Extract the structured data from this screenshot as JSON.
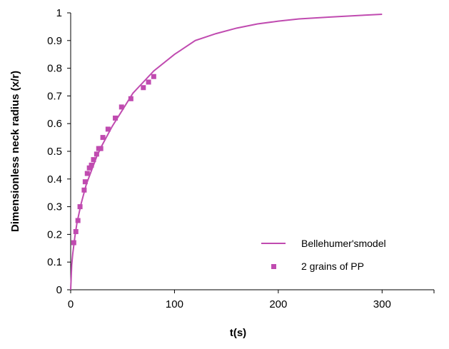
{
  "chart_data": {
    "type": "scatter",
    "xlabel": "t(s)",
    "ylabel": "Dimensionless neck radius (x/r)",
    "xlim": [
      0,
      350
    ],
    "ylim": [
      0,
      1
    ],
    "x_ticks": [
      0,
      100,
      200,
      300
    ],
    "y_ticks": [
      0,
      0.1,
      0.2,
      0.3,
      0.4,
      0.5,
      0.6,
      0.7,
      0.8,
      0.9,
      1
    ],
    "x_tick_labels": [
      "0",
      "100",
      "200",
      "300"
    ],
    "y_tick_labels": [
      "0",
      "0.1",
      "0.2",
      "0.3",
      "0.4",
      "0.5",
      "0.6",
      "0.7",
      "0.8",
      "0.9",
      "1"
    ],
    "grid": false,
    "legend_position": "bottom-right",
    "series": [
      {
        "name": "Bellehumer'smodel",
        "kind": "line",
        "color": "#c04bb0",
        "x": [
          0,
          1,
          2,
          4,
          6,
          10,
          15,
          20,
          25,
          30,
          40,
          50,
          60,
          70,
          80,
          100,
          120,
          140,
          160,
          180,
          200,
          220,
          250,
          280,
          300
        ],
        "y": [
          0,
          0.09,
          0.13,
          0.19,
          0.24,
          0.31,
          0.38,
          0.43,
          0.48,
          0.52,
          0.59,
          0.65,
          0.71,
          0.75,
          0.79,
          0.85,
          0.9,
          0.925,
          0.945,
          0.96,
          0.97,
          0.978,
          0.985,
          0.991,
          0.995
        ]
      },
      {
        "name": "2 grains of PP",
        "kind": "scatter",
        "color": "#c04bb0",
        "x": [
          3,
          5,
          7,
          9,
          13,
          14,
          16,
          18,
          20,
          22,
          25,
          27,
          29,
          31,
          36,
          43,
          49,
          58,
          70,
          75,
          80
        ],
        "y": [
          0.17,
          0.21,
          0.25,
          0.3,
          0.36,
          0.39,
          0.42,
          0.44,
          0.45,
          0.47,
          0.49,
          0.51,
          0.51,
          0.55,
          0.58,
          0.62,
          0.66,
          0.69,
          0.73,
          0.75,
          0.77
        ]
      }
    ]
  }
}
